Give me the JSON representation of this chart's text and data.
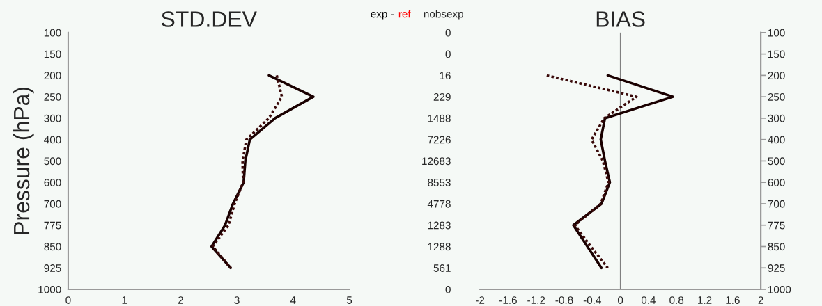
{
  "chart_data": [
    {
      "type": "line",
      "orientation": "horizontal",
      "title": "STD.DEV",
      "ylabel": "Pressure (hPa)",
      "categories": [
        "100",
        "150",
        "200",
        "250",
        "300",
        "400",
        "500",
        "600",
        "700",
        "775",
        "850",
        "925",
        "1000"
      ],
      "series": [
        {
          "color": "#1a0000",
          "line_style": "solid",
          "values": [
            null,
            null,
            3.57,
            4.36,
            3.68,
            3.23,
            3.15,
            3.12,
            2.93,
            2.79,
            2.55,
            2.89,
            null
          ]
        },
        {
          "color": "#3a0a0a",
          "line_style": "dotted",
          "values": [
            null,
            null,
            3.71,
            3.8,
            3.57,
            3.17,
            3.1,
            3.11,
            2.96,
            2.85,
            2.57,
            2.89,
            null
          ]
        }
      ],
      "xlim": [
        0,
        5
      ],
      "xticks": [
        0,
        1,
        2,
        3,
        4,
        5
      ],
      "grid": false,
      "annotations": [
        "exp - ",
        "ref"
      ]
    },
    {
      "type": "line",
      "orientation": "horizontal",
      "title": "BIAS",
      "y2label": "nobsexp",
      "categories": [
        "100",
        "150",
        "200",
        "250",
        "300",
        "400",
        "500",
        "600",
        "700",
        "775",
        "850",
        "925",
        "1000"
      ],
      "y2_categories": [
        "0",
        "0",
        "16",
        "229",
        "1488",
        "7226",
        "12683",
        "8553",
        "4778",
        "1283",
        "1288",
        "561",
        "0"
      ],
      "series": [
        {
          "color": "#1a0000",
          "line_style": "solid",
          "values": [
            null,
            null,
            -0.18,
            0.75,
            -0.22,
            -0.28,
            -0.22,
            -0.15,
            -0.27,
            -0.67,
            -0.47,
            -0.27,
            null
          ]
        },
        {
          "color": "#3a0a0a",
          "line_style": "dotted",
          "values": [
            null,
            null,
            -1.05,
            0.23,
            -0.23,
            -0.41,
            -0.25,
            -0.17,
            -0.28,
            -0.65,
            -0.42,
            -0.18,
            null
          ]
        }
      ],
      "xlim": [
        -2,
        2
      ],
      "xticks": [
        -2,
        -1.6,
        -1.2,
        -0.8,
        -0.4,
        0,
        0.4,
        0.8,
        1.2,
        1.6,
        2
      ],
      "grid": false,
      "ref_lines": [
        {
          "axis": "x",
          "value": 0,
          "color": "#808080"
        }
      ]
    }
  ]
}
